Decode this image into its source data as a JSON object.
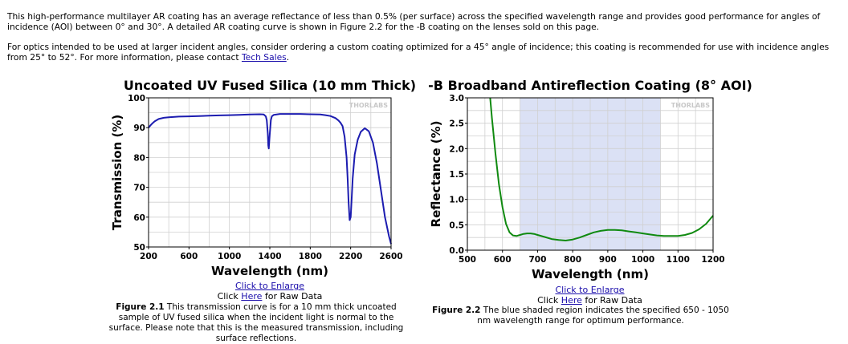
{
  "intro": {
    "p1": "This high-performance multilayer AR coating has an average reflectance of less than 0.5% (per surface) across the specified wavelength range and provides good performance for angles of incidence (AOI) between 0° and 30°. A detailed AR coating curve is shown in Figure 2.2 for the -B coating on the lenses sold on this page.",
    "p2_text": "For optics intended to be used at larger incident angles, consider ordering a custom coating optimized for a 45° angle of incidence; this coating is recommended for use with incidence angles from 25° to 52°. For more information, please contact ",
    "p2_link": "Tech Sales",
    "p2_end": "."
  },
  "watermark": "THORLABS",
  "figure1": {
    "enlarge_link": "Click to Enlarge",
    "raw_prefix": "Click ",
    "raw_link": "Here",
    "raw_suffix": " for Raw Data",
    "caption_label": "Figure 2.1",
    "caption_text": "  This transmission curve is for a 10 mm thick uncoated sample of UV fused silica when the incident light is normal to the surface. Please note that this is the measured transmission, including surface reflections."
  },
  "figure2": {
    "enlarge_link": "Click to Enlarge",
    "raw_prefix": "Click ",
    "raw_link": "Here",
    "raw_suffix": " for Raw Data",
    "caption_label": "Figure 2.2",
    "caption_text": "  The blue shaded region indicates the specified 650 - 1050 nm wavelength range for optimum performance."
  },
  "chart_data": [
    {
      "type": "line",
      "title": "Uncoated UV Fused Silica (10 mm Thick)",
      "xlabel": "Wavelength (nm)",
      "ylabel": "Transmission (%)",
      "xlim": [
        200,
        2600
      ],
      "ylim": [
        50,
        100
      ],
      "xticks": [
        200,
        600,
        1000,
        1400,
        1800,
        2200,
        2600
      ],
      "yticks": [
        50,
        60,
        70,
        80,
        90,
        100
      ],
      "grid": true,
      "color": "#1c1cb0",
      "x": [
        200,
        220,
        240,
        260,
        300,
        350,
        400,
        500,
        600,
        700,
        800,
        900,
        1000,
        1100,
        1200,
        1300,
        1340,
        1360,
        1370,
        1380,
        1385,
        1390,
        1400,
        1410,
        1420,
        1440,
        1500,
        1600,
        1700,
        1800,
        1900,
        1950,
        2000,
        2050,
        2080,
        2100,
        2120,
        2140,
        2160,
        2170,
        2180,
        2190,
        2200,
        2210,
        2220,
        2240,
        2270,
        2300,
        2340,
        2380,
        2420,
        2460,
        2500,
        2540,
        2580,
        2600
      ],
      "y": [
        90.0,
        90.8,
        91.5,
        92.1,
        92.9,
        93.3,
        93.5,
        93.7,
        93.8,
        93.9,
        94.0,
        94.1,
        94.2,
        94.3,
        94.4,
        94.5,
        94.4,
        93.8,
        92.5,
        88.0,
        84.0,
        83.0,
        88.0,
        92.5,
        93.8,
        94.3,
        94.6,
        94.6,
        94.6,
        94.5,
        94.4,
        94.2,
        93.9,
        93.2,
        92.4,
        91.6,
        90.5,
        87.0,
        80.0,
        73.0,
        65.0,
        59.0,
        60.0,
        66.0,
        73.0,
        81.0,
        86.0,
        88.6,
        89.8,
        88.8,
        85.0,
        78.0,
        69.0,
        60.0,
        53.5,
        51.0
      ]
    },
    {
      "type": "line",
      "title": "-B Broadband Antireflection Coating (8° AOI)",
      "xlabel": "Wavelength (nm)",
      "ylabel": "Reflectance (%)",
      "xlim": [
        500,
        1200
      ],
      "ylim": [
        0.0,
        3.0
      ],
      "xticks": [
        500,
        600,
        700,
        800,
        900,
        1000,
        1100,
        1200
      ],
      "yticks": [
        0.0,
        0.5,
        1.0,
        1.5,
        2.0,
        2.5,
        3.0
      ],
      "grid": true,
      "color": "#108a10",
      "shaded_region": [
        650,
        1050
      ],
      "shade_color": "#dbe1f5",
      "x": [
        565,
        570,
        580,
        590,
        600,
        610,
        620,
        630,
        640,
        650,
        660,
        670,
        680,
        690,
        700,
        720,
        740,
        760,
        780,
        800,
        820,
        840,
        860,
        880,
        900,
        920,
        940,
        960,
        980,
        1000,
        1020,
        1040,
        1060,
        1080,
        1100,
        1120,
        1140,
        1160,
        1180,
        1200
      ],
      "y": [
        3.0,
        2.6,
        1.9,
        1.3,
        0.85,
        0.52,
        0.35,
        0.29,
        0.28,
        0.3,
        0.32,
        0.33,
        0.33,
        0.32,
        0.3,
        0.26,
        0.22,
        0.2,
        0.19,
        0.21,
        0.25,
        0.3,
        0.35,
        0.38,
        0.4,
        0.4,
        0.39,
        0.37,
        0.35,
        0.33,
        0.31,
        0.29,
        0.28,
        0.28,
        0.28,
        0.3,
        0.34,
        0.41,
        0.52,
        0.68
      ]
    }
  ]
}
